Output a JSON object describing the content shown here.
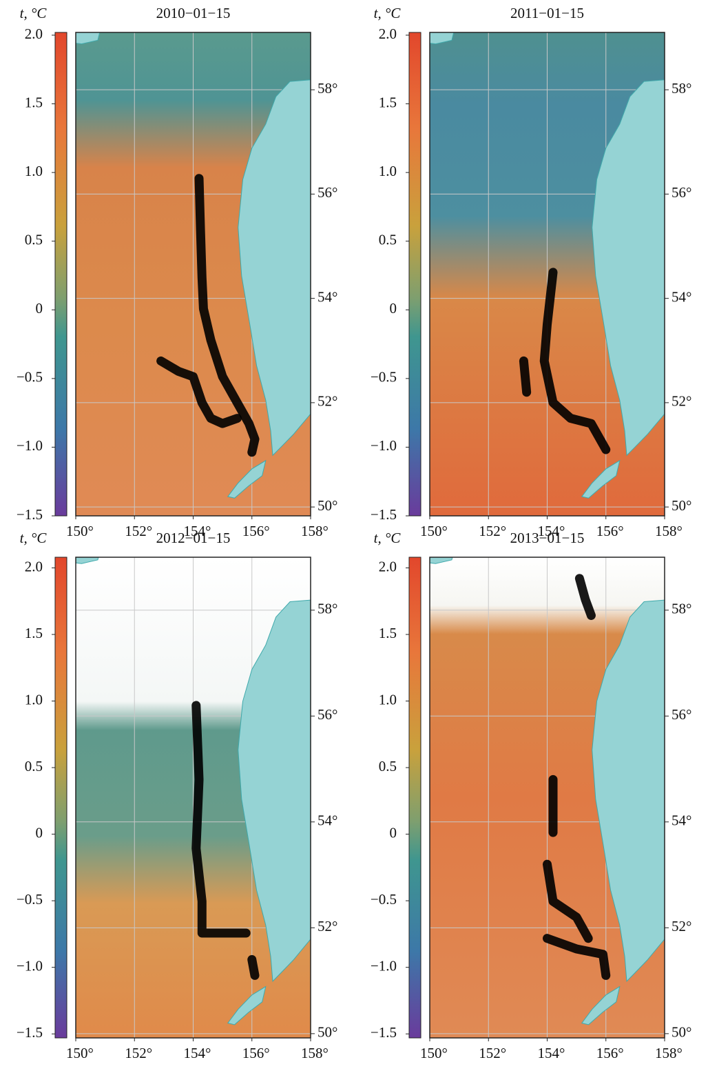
{
  "chart_data": [
    {
      "type": "map",
      "title": "2010−01−15",
      "colorbar_label": "t, °C",
      "clim": [
        -1.5,
        2.02
      ],
      "cticks": [
        {
          "value": 2,
          "label": "2.0"
        },
        1.5,
        {
          "value": 1,
          "label": "1.0"
        },
        0.5,
        0,
        {
          "value": -0.5,
          "label": "−0.5"
        },
        {
          "value": -1,
          "label": "−1.0"
        },
        {
          "value": -1.5,
          "label": "−1.5"
        }
      ],
      "xlim": [
        150,
        158
      ],
      "ylim": [
        49.83,
        59.1
      ],
      "xticks": [
        {
          "value": 150,
          "label": "150°"
        },
        {
          "value": 152,
          "label": "152°"
        },
        {
          "value": 154,
          "label": "154°"
        },
        {
          "value": 156,
          "label": "156°"
        },
        {
          "value": 158,
          "label": "158°"
        }
      ],
      "yticks": [
        {
          "value": 50,
          "label": "50°"
        },
        {
          "value": 52,
          "label": "52°"
        },
        {
          "value": 54,
          "label": "54°"
        },
        {
          "value": 56,
          "label": "56°"
        },
        {
          "value": 58,
          "label": "58°"
        }
      ],
      "grid": true,
      "color": "#000000",
      "tracks": [
        {
          "x": [
            154.2,
            154.25,
            154.3,
            154.35,
            154.6,
            155.0,
            155.5,
            155.9,
            156.1,
            156.0
          ],
          "y": [
            56.3,
            55.3,
            54.4,
            53.8,
            53.2,
            52.5,
            52.0,
            51.6,
            51.3,
            51.05
          ]
        },
        {
          "x": [
            152.9,
            153.5,
            154.0,
            154.3,
            154.6,
            155.0,
            155.5
          ],
          "y": [
            52.8,
            52.6,
            52.5,
            52.0,
            51.7,
            51.6,
            51.7
          ]
        }
      ]
    },
    {
      "type": "map",
      "title": "2011−01−15",
      "colorbar_label": "t, °C",
      "clim": [
        -1.5,
        2.02
      ],
      "cticks": [
        {
          "value": 2,
          "label": "2.0"
        },
        1.5,
        {
          "value": 1,
          "label": "1.0"
        },
        0.5,
        0,
        {
          "value": -0.5,
          "label": "−0.5"
        },
        {
          "value": -1,
          "label": "−1.0"
        },
        {
          "value": -1.5,
          "label": "−1.5"
        }
      ],
      "xlim": [
        150,
        158
      ],
      "ylim": [
        49.83,
        59.1
      ],
      "xticks": [
        {
          "value": 150,
          "label": "150°"
        },
        {
          "value": 152,
          "label": "152°"
        },
        {
          "value": 154,
          "label": "154°"
        },
        {
          "value": 156,
          "label": "156°"
        },
        {
          "value": 158,
          "label": "158°"
        }
      ],
      "yticks": [
        {
          "value": 50,
          "label": "50°"
        },
        {
          "value": 52,
          "label": "52°"
        },
        {
          "value": 54,
          "label": "54°"
        },
        {
          "value": 56,
          "label": "56°"
        },
        {
          "value": 58,
          "label": "58°"
        }
      ],
      "grid": true,
      "color": "#000000",
      "tracks": [
        {
          "x": [
            154.2,
            154.0,
            153.9,
            154.2,
            154.8,
            155.5,
            156.0
          ],
          "y": [
            54.5,
            53.5,
            52.8,
            52.0,
            51.7,
            51.6,
            51.1
          ]
        },
        {
          "x": [
            153.2,
            153.3
          ],
          "y": [
            52.8,
            52.2
          ]
        }
      ]
    },
    {
      "type": "map",
      "title": "2012−01−15",
      "colorbar_label": "t, °C",
      "clim": [
        -1.53,
        2.08
      ],
      "cticks": [
        {
          "value": 2,
          "label": "2.0"
        },
        1.5,
        {
          "value": 1,
          "label": "1.0"
        },
        0.5,
        0,
        {
          "value": -0.5,
          "label": "−0.5"
        },
        {
          "value": -1,
          "label": "−1.0"
        },
        {
          "value": -1.5,
          "label": "−1.5"
        }
      ],
      "xlim": [
        150,
        158
      ],
      "ylim": [
        49.92,
        59.0
      ],
      "xticks": [
        {
          "value": 150,
          "label": "150°"
        },
        {
          "value": 152,
          "label": "152°"
        },
        {
          "value": 154,
          "label": "154°"
        },
        {
          "value": 156,
          "label": "156°"
        },
        {
          "value": 158,
          "label": "158°"
        }
      ],
      "yticks": [
        {
          "value": 50,
          "label": "50°"
        },
        {
          "value": 52,
          "label": "52°"
        },
        {
          "value": 54,
          "label": "54°"
        },
        {
          "value": 56,
          "label": "56°"
        },
        {
          "value": 58,
          "label": "58°"
        }
      ],
      "grid": true,
      "color": "#000000",
      "tracks": [
        {
          "x": [
            154.1,
            154.2,
            154.1,
            154.3,
            154.3,
            155.0,
            155.8
          ],
          "y": [
            56.2,
            54.8,
            53.5,
            52.5,
            51.9,
            51.9,
            51.9
          ]
        },
        {
          "x": [
            156.0,
            156.1
          ],
          "y": [
            51.4,
            51.1
          ]
        }
      ]
    },
    {
      "type": "map",
      "title": "2013−01−15",
      "colorbar_label": "t, °C",
      "clim": [
        -1.53,
        2.08
      ],
      "cticks": [
        {
          "value": 2,
          "label": "2.0"
        },
        1.5,
        {
          "value": 1,
          "label": "1.0"
        },
        0.5,
        0,
        {
          "value": -0.5,
          "label": "−0.5"
        },
        {
          "value": -1,
          "label": "−1.0"
        },
        {
          "value": -1.5,
          "label": "−1.5"
        }
      ],
      "xlim": [
        150,
        158
      ],
      "ylim": [
        49.92,
        59.0
      ],
      "xticks": [
        {
          "value": 150,
          "label": "150°"
        },
        {
          "value": 152,
          "label": "152°"
        },
        {
          "value": 154,
          "label": "154°"
        },
        {
          "value": 156,
          "label": "156°"
        },
        {
          "value": 158,
          "label": "158°"
        }
      ],
      "yticks": [
        {
          "value": 50,
          "label": "50°"
        },
        {
          "value": 52,
          "label": "52°"
        },
        {
          "value": 54,
          "label": "54°"
        },
        {
          "value": 56,
          "label": "56°"
        },
        {
          "value": 58,
          "label": "58°"
        }
      ],
      "grid": true,
      "color": "#000000",
      "tracks": [
        {
          "x": [
            155.1,
            155.3,
            155.5
          ],
          "y": [
            58.6,
            58.2,
            57.9
          ]
        },
        {
          "x": [
            154.2,
            154.2
          ],
          "y": [
            54.8,
            53.8
          ]
        },
        {
          "x": [
            154.0,
            154.2,
            155.0,
            155.4
          ],
          "y": [
            53.2,
            52.5,
            52.2,
            51.8
          ]
        },
        {
          "x": [
            154.0,
            155.0,
            155.9,
            156.0
          ],
          "y": [
            51.8,
            51.6,
            51.5,
            51.1
          ]
        }
      ]
    }
  ]
}
